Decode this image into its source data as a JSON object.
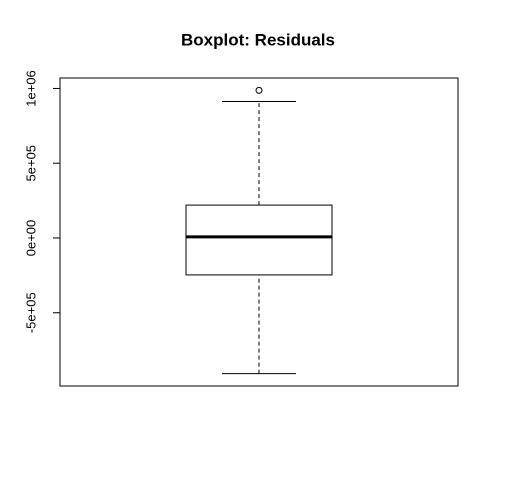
{
  "chart_data": {
    "type": "box",
    "title": "Boxplot: Residuals",
    "ylim": [
      -990000,
      1070000
    ],
    "yticks": [
      {
        "value": -500000,
        "label": "-5e+05"
      },
      {
        "value": 0,
        "label": "0e+00"
      },
      {
        "value": 500000,
        "label": "5e+05"
      },
      {
        "value": 1000000,
        "label": "1e+06"
      }
    ],
    "box": {
      "whisker_low": -907000,
      "q1": -247000,
      "median": 7000,
      "q3": 220000,
      "whisker_high": 913000,
      "outliers": [
        987000
      ]
    }
  }
}
